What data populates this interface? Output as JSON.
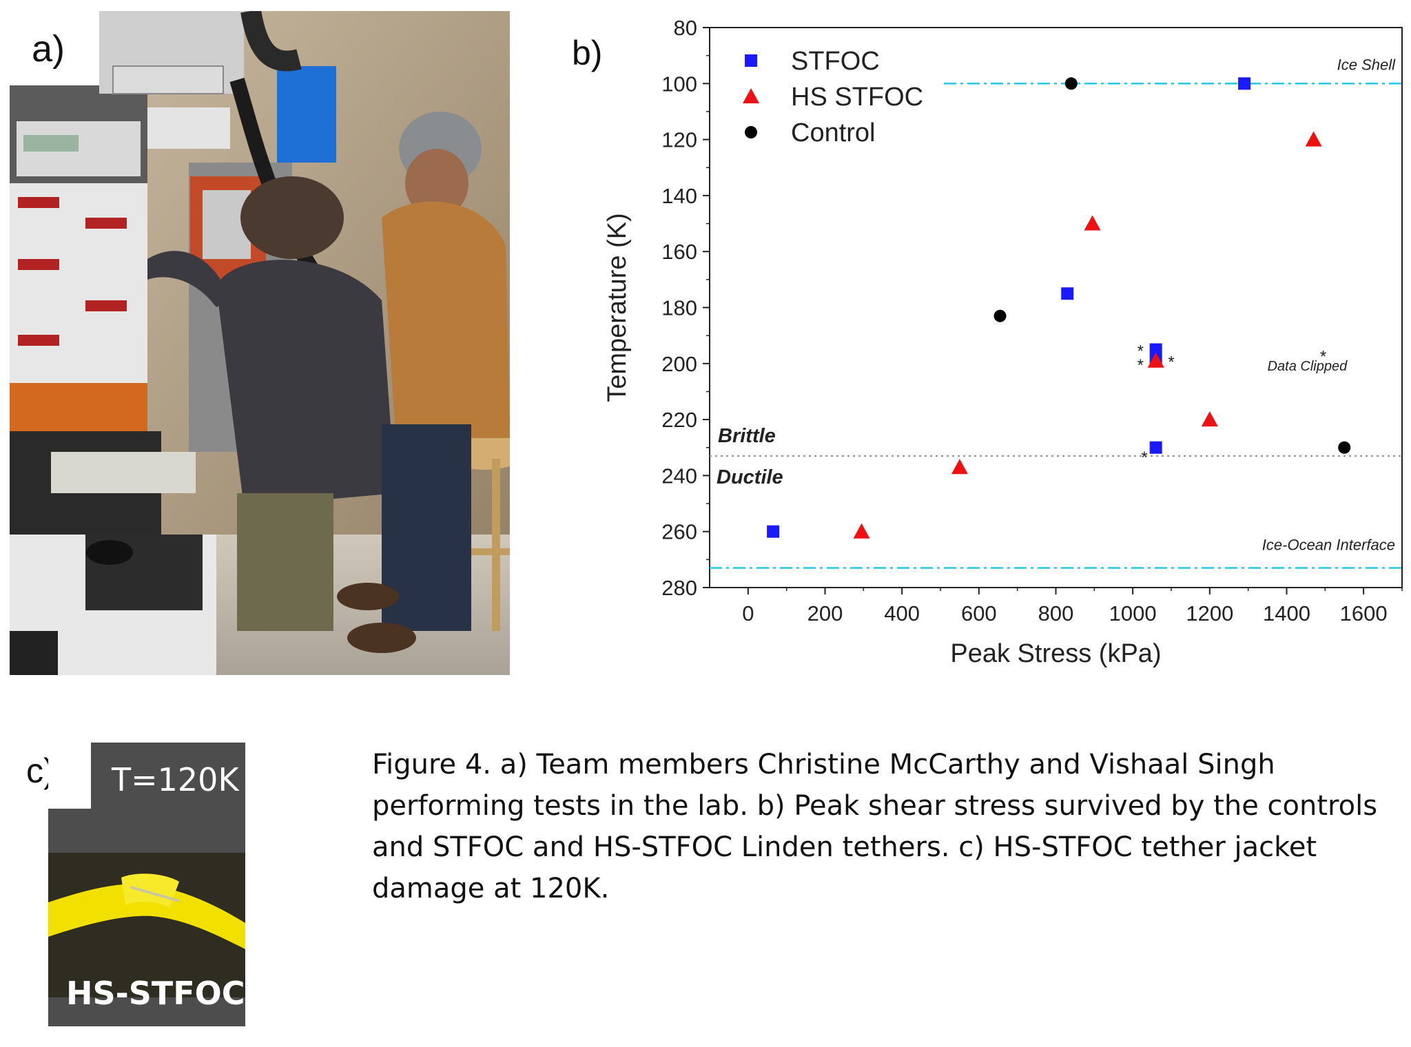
{
  "panels": {
    "a_label": "a)",
    "b_label": "b)",
    "c_label": "c)"
  },
  "panel_c": {
    "top_text": "T=120K",
    "bottom_text": "HS-STFOC"
  },
  "caption": "Figure 4. a) Team members Christine McCarthy and Vishaal Singh performing tests in the lab. b) Peak shear stress survived by the controls and STFOC and HS-STFOC Linden tethers. c) HS-STFOC tether jacket damage at 120K.",
  "chart_data": {
    "type": "scatter",
    "xlabel": "Peak Stress (kPa)",
    "ylabel": "Temperature (K)",
    "xlim": [
      -100,
      1700
    ],
    "ylim": [
      280,
      80
    ],
    "y_inverted": true,
    "xticks": [
      0,
      200,
      400,
      600,
      800,
      1000,
      1200,
      1400,
      1600
    ],
    "yticks": [
      80,
      100,
      120,
      140,
      160,
      180,
      200,
      220,
      240,
      260,
      280
    ],
    "legend_position": "top-left",
    "series": [
      {
        "name": "STFOC",
        "marker": "square",
        "color": "#1a1aff",
        "x": [
          65,
          830,
          1060,
          1060,
          1060,
          1290
        ],
        "y": [
          260,
          175,
          195,
          199,
          230,
          100
        ]
      },
      {
        "name": "HS STFOC",
        "marker": "triangle",
        "color": "#ee1111",
        "x": [
          295,
          550,
          895,
          1060,
          1200,
          1470
        ],
        "y": [
          260,
          237,
          150,
          199,
          220,
          120
        ]
      },
      {
        "name": "Control",
        "marker": "circle",
        "color": "#000000",
        "x": [
          655,
          840,
          1550
        ],
        "y": [
          183,
          100,
          230
        ]
      }
    ],
    "reference_lines": [
      {
        "label": "Ice Shell",
        "y": 100,
        "style": "dashdot",
        "color": "#22c8e6"
      },
      {
        "label": "Ice-Ocean Interface",
        "y": 273,
        "style": "dashdot",
        "color": "#22c8e6"
      },
      {
        "label": "",
        "y": 233,
        "style": "dotted",
        "color": "#999999"
      }
    ],
    "region_labels": [
      "Brittle",
      "Ductile"
    ],
    "annotations": [
      {
        "text": "Data Clipped",
        "x": 1350,
        "y": 200
      },
      {
        "text": "*",
        "x": 1020,
        "y": 195
      },
      {
        "text": "*",
        "x": 1020,
        "y": 200
      },
      {
        "text": "*",
        "x": 1100,
        "y": 199
      },
      {
        "text": "*",
        "x": 1030,
        "y": 233
      },
      {
        "text": "*",
        "x": 1495,
        "y": 197
      }
    ]
  },
  "colors": {
    "accent_cyan": "#22c8e6",
    "stfoc": "#1a1aff",
    "hs_stfoc": "#ee1111",
    "control": "#000000",
    "tether_yellow": "#f2e000"
  }
}
